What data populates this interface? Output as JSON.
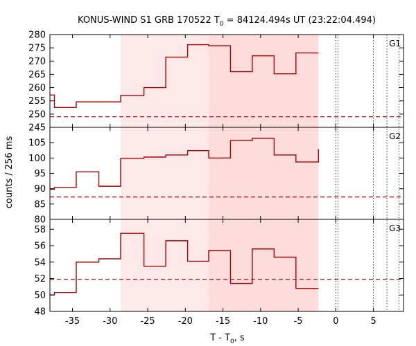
{
  "chart_data": {
    "type": "line",
    "title_main": "KONUS-WIND S1 GRB 170522 T",
    "title_sub": "0",
    "title_rest": " = 84124.494s UT (23:22:04.494)",
    "xlabel_main": "T - T",
    "xlabel_sub": "0",
    "xlabel_rest": ", s",
    "ylabel": "counts / 256 ms",
    "xlim": [
      -38,
      9
    ],
    "xticks": [
      -35,
      -30,
      -25,
      -20,
      -15,
      -10,
      -5,
      0,
      5
    ],
    "xtick_labels": [
      "-35",
      "-30",
      "-25",
      "-20",
      "-15",
      "-10",
      "-5",
      "0",
      "5"
    ],
    "shaded_regions": [
      {
        "x": [
          -28.6,
          -16.9
        ],
        "color": "#fde9e9"
      },
      {
        "x": [
          -16.9,
          -2.3
        ],
        "color": "#fddcdc"
      }
    ],
    "vertical_lines_x": [
      0,
      0.3,
      5,
      6.8,
      8.4
    ],
    "line_color": "#b00000",
    "panels": [
      {
        "name": "G1",
        "ylim": [
          245,
          280
        ],
        "yticks": [
          245,
          250,
          255,
          260,
          265,
          270,
          275,
          280
        ],
        "ytick_labels": [
          "245",
          "250",
          "255",
          "260",
          "265",
          "270",
          "275",
          "280"
        ],
        "background": 249.0,
        "edges": [
          -38,
          -37.4,
          -34.5,
          -28.6,
          -25.5,
          -22.6,
          -19.7,
          -16.9,
          -14.0,
          -11.1,
          -8.2,
          -5.3,
          -2.3
        ],
        "values": [
          257.2,
          252.5,
          254.6,
          257.0,
          260.0,
          271.5,
          276.2,
          275.8,
          266.0,
          272.0,
          265.2,
          273.1
        ]
      },
      {
        "name": "G2",
        "ylim": [
          80,
          110
        ],
        "yticks": [
          80,
          85,
          90,
          95,
          100,
          105
        ],
        "ytick_labels": [
          "80",
          "85",
          "90",
          "95",
          "100",
          "105"
        ],
        "background": 87.3,
        "edges": [
          -38,
          -37.4,
          -34.5,
          -31.5,
          -28.6,
          -25.5,
          -22.6,
          -19.7,
          -16.9,
          -14.0,
          -11.1,
          -8.2,
          -5.3,
          -2.3
        ],
        "values": [
          89.8,
          90.4,
          95.5,
          90.8,
          99.9,
          100.3,
          101.0,
          102.4,
          100.0,
          105.7,
          106.4,
          101.0,
          98.7,
          102.9
        ]
      },
      {
        "name": "G3",
        "ylim": [
          48,
          59.2
        ],
        "yticks": [
          48,
          50,
          52,
          54,
          56,
          58
        ],
        "ytick_labels": [
          "48",
          "50",
          "52",
          "54",
          "56",
          "58"
        ],
        "background": 51.9,
        "edges": [
          -38,
          -37.4,
          -34.5,
          -31.5,
          -28.6,
          -25.5,
          -22.6,
          -19.7,
          -16.9,
          -14.0,
          -11.1,
          -8.2,
          -5.3,
          -2.3
        ],
        "values": [
          50.0,
          50.3,
          54.0,
          54.4,
          57.5,
          53.5,
          56.6,
          54.1,
          55.4,
          51.4,
          55.6,
          54.6,
          50.8,
          50.8
        ]
      }
    ]
  }
}
